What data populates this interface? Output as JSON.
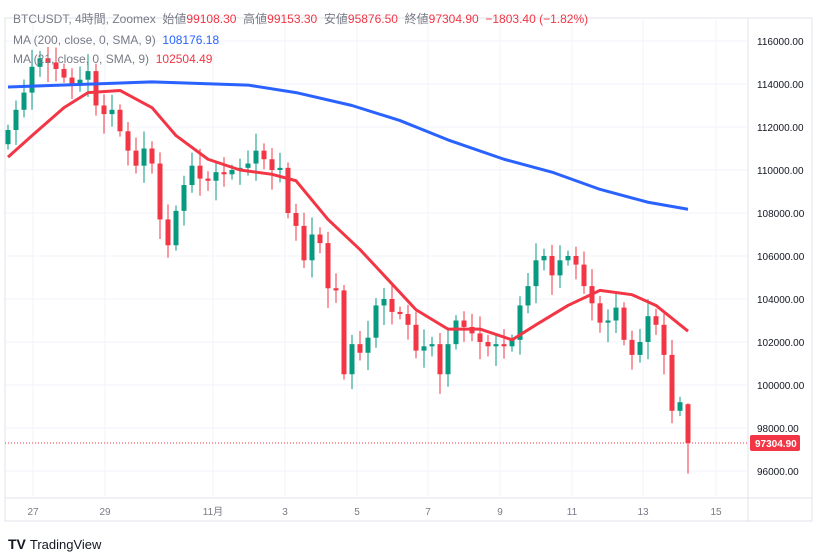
{
  "header": {
    "symbol": "BTCUSDT, 4時間, Zoomex",
    "open_label": "始値",
    "open": "99108.30",
    "high_label": "高値",
    "high": "99153.30",
    "low_label": "安値",
    "low": "95876.50",
    "close_label": "終値",
    "close": "97304.90",
    "change": "−1803.40 (−1.82%)"
  },
  "ma200": {
    "label": "MA (200, close, 0, SMA, 9)",
    "value": "108176.18"
  },
  "ma21": {
    "label": "MA (21, close, 0, SMA, 9)",
    "value": "102504.49"
  },
  "footer": {
    "brand": "TradingView"
  },
  "colors": {
    "up": "#089981",
    "down": "#f23645",
    "ma200": "#2962ff",
    "ma21": "#f23645"
  },
  "chart_data": {
    "type": "candlestick",
    "ylim": [
      95000,
      117000
    ],
    "yticks": [
      96000,
      98000,
      100000,
      102000,
      104000,
      106000,
      108000,
      110000,
      112000,
      114000,
      116000
    ],
    "ytick_labels": [
      "96000.00",
      "98000.00",
      "100000.00",
      "102000.00",
      "104000.00",
      "106000.00",
      "108000.00",
      "110000.00",
      "112000.00",
      "114000.00",
      "116000.00"
    ],
    "xtick_labels": [
      "27",
      "29",
      "11月",
      "3",
      "5",
      "7",
      "9",
      "11",
      "13",
      "15"
    ],
    "last_price_label": "97304.90",
    "closes": [
      111860,
      112800,
      113600,
      114800,
      115200,
      115000,
      114700,
      114300,
      114000,
      114200,
      114600,
      113000,
      112600,
      112800,
      111800,
      110900,
      110200,
      111000,
      110300,
      107700,
      106500,
      108100,
      109300,
      110200,
      109600,
      109500,
      109900,
      109800,
      110000,
      110100,
      110300,
      110900,
      110500,
      110000,
      110100,
      108000,
      107400,
      105800,
      107000,
      106600,
      104500,
      104400,
      100500,
      101900,
      101500,
      102200,
      103700,
      104000,
      103400,
      103300,
      102800,
      101600,
      101800,
      101900,
      100500,
      101900,
      103000,
      102700,
      102400,
      102000,
      101800,
      101900,
      101800,
      102100,
      103700,
      104600,
      105800,
      106000,
      105100,
      105800,
      106000,
      105600,
      104600,
      103800,
      102900,
      103000,
      103600,
      102100,
      101400,
      102000,
      103200,
      102800,
      101400,
      98800,
      99200,
      97304.9
    ],
    "first_open": 111200,
    "last_candle": {
      "open": 99108.3,
      "high": 99153.3,
      "low": 95876.5,
      "close": 97304.9
    },
    "ma200_points": [
      [
        0,
        113860
      ],
      [
        18,
        114100
      ],
      [
        30,
        113950
      ],
      [
        36,
        113600
      ],
      [
        43,
        113000
      ],
      [
        49,
        112300
      ],
      [
        55,
        111400
      ],
      [
        62,
        110500
      ],
      [
        68,
        109900
      ],
      [
        74,
        109100
      ],
      [
        80,
        108500
      ],
      [
        85,
        108176
      ]
    ],
    "ma21_points": [
      [
        0,
        110600
      ],
      [
        3,
        111600
      ],
      [
        7,
        112900
      ],
      [
        10,
        113600
      ],
      [
        14,
        113700
      ],
      [
        18,
        112900
      ],
      [
        21,
        111600
      ],
      [
        25,
        110500
      ],
      [
        29,
        110000
      ],
      [
        33,
        109800
      ],
      [
        36,
        109500
      ],
      [
        40,
        107700
      ],
      [
        44,
        106300
      ],
      [
        48,
        104700
      ],
      [
        51,
        103500
      ],
      [
        55,
        102600
      ],
      [
        59,
        102600
      ],
      [
        63,
        102100
      ],
      [
        66,
        102800
      ],
      [
        70,
        103700
      ],
      [
        74,
        104400
      ],
      [
        78,
        104200
      ],
      [
        81,
        103700
      ],
      [
        85,
        102504
      ]
    ]
  }
}
